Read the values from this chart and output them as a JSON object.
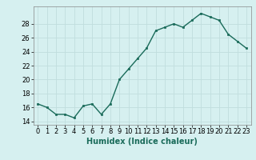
{
  "x": [
    0,
    1,
    2,
    3,
    4,
    5,
    6,
    7,
    8,
    9,
    10,
    11,
    12,
    13,
    14,
    15,
    16,
    17,
    18,
    19,
    20,
    21,
    22,
    23
  ],
  "y": [
    16.5,
    16.0,
    15.0,
    15.0,
    14.5,
    16.2,
    16.5,
    15.0,
    16.5,
    20.0,
    21.5,
    23.0,
    24.5,
    27.0,
    27.5,
    28.0,
    27.5,
    28.5,
    29.5,
    29.0,
    28.5,
    26.5,
    25.5,
    24.5
  ],
  "xlabel": "Humidex (Indice chaleur)",
  "xlim": [
    -0.5,
    23.5
  ],
  "ylim": [
    13.5,
    30.5
  ],
  "yticks": [
    14,
    16,
    18,
    20,
    22,
    24,
    26,
    28
  ],
  "xtick_labels": [
    "0",
    "1",
    "2",
    "3",
    "4",
    "5",
    "6",
    "7",
    "8",
    "9",
    "10",
    "11",
    "12",
    "13",
    "14",
    "15",
    "16",
    "17",
    "18",
    "19",
    "20",
    "21",
    "22",
    "23"
  ],
  "line_color": "#1a6b5a",
  "marker_color": "#1a6b5a",
  "bg_color": "#d6f0f0",
  "grid_color": "#c0dede",
  "fig_bg": "#d6f0f0",
  "tick_fontsize": 6,
  "xlabel_fontsize": 7
}
